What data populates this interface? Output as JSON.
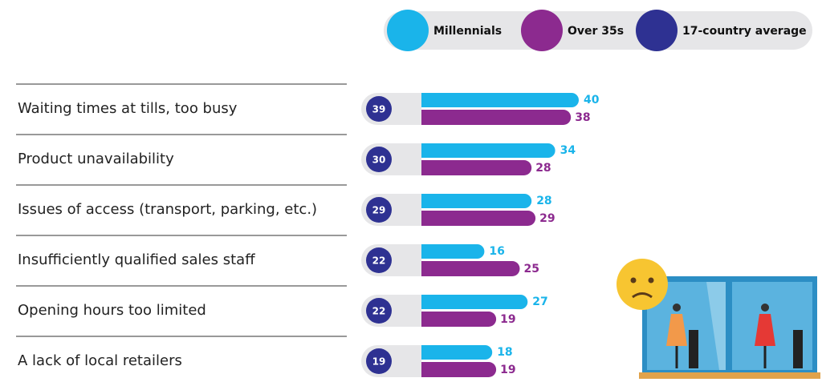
{
  "chart_data": {
    "type": "bar",
    "categories": [
      "Waiting times at tills, too busy",
      "Product unavailability",
      "Issues of access (transport, parking, etc.)",
      "Insufficiently qualified sales staff",
      "Opening hours too limited",
      "A lack of local retailers"
    ],
    "series": [
      {
        "name": "Millennials",
        "color": "#1ab4ea",
        "values": [
          40,
          34,
          28,
          16,
          27,
          18
        ]
      },
      {
        "name": "Over 35s",
        "color": "#8c2a8f",
        "values": [
          38,
          28,
          29,
          25,
          19,
          19
        ]
      },
      {
        "name": "17-country average",
        "color": "#2e3192",
        "values": [
          39,
          30,
          29,
          22,
          22,
          19
        ]
      }
    ]
  }
}
